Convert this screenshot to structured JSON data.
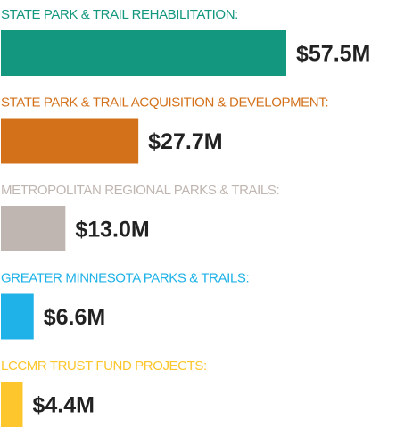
{
  "chart_data": {
    "type": "bar",
    "categories": [
      "STATE PARK & TRAIL REHABILITATION:",
      "STATE PARK & TRAIL ACQUISITION & DEVELOPMENT:",
      "METROPOLITAN REGIONAL PARKS & TRAILS:",
      "GREATER MINNESOTA PARKS & TRAILS:",
      "LCCMR TRUST FUND PROJECTS:"
    ],
    "values": [
      57.5,
      27.7,
      13.0,
      6.6,
      4.4
    ],
    "value_labels": [
      "$57.5M",
      "$27.7M",
      "$13.0M",
      "$6.6M",
      "$4.4M"
    ],
    "colors": [
      "#13977f",
      "#d3711b",
      "#c0b6b1",
      "#1eb2e8",
      "#fcc62c"
    ]
  }
}
